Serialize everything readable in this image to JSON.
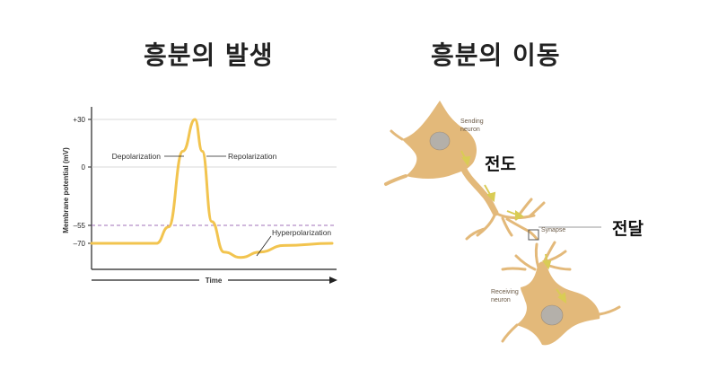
{
  "left_panel": {
    "title": "흥분의 발생",
    "chart_data": {
      "type": "line",
      "xlabel": "Time",
      "ylabel": "Membrane potential (mV)",
      "y_ticks": [
        "+30",
        "0",
        "–55",
        "–70"
      ],
      "threshold": -55,
      "annotations": [
        "Depolarization",
        "Repolarization",
        "Hyperpolarization"
      ],
      "series": [
        {
          "x": [
            0,
            0.27,
            0.32,
            0.38,
            0.43,
            0.46,
            0.5,
            0.55,
            0.62,
            0.7,
            0.8,
            1.0
          ],
          "y": [
            -70,
            -70,
            -55,
            10,
            30,
            10,
            -50,
            -78,
            -83,
            -78,
            -72,
            -70
          ]
        }
      ],
      "colors": {
        "line": "#f2c44f",
        "threshold": "#a070b8",
        "grid": "#cccccc"
      }
    }
  },
  "right_panel": {
    "title": "흥분의 이동",
    "labels": {
      "sending": [
        "Sending",
        "neuron"
      ],
      "receiving": [
        "Receiving",
        "neuron"
      ],
      "synapse": "Synapse"
    },
    "conduction": "전도",
    "transmission": "전달",
    "colors": {
      "neuron": "#e3b97a",
      "nucleus": "#b4b0aa",
      "arrow": "#d9cc55"
    }
  }
}
